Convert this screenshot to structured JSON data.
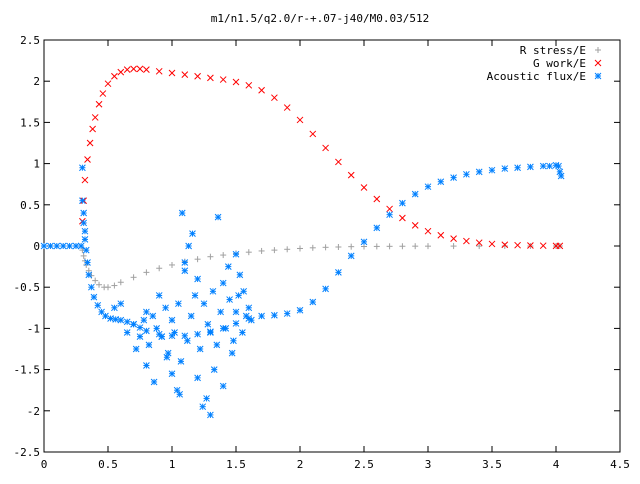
{
  "chart_data": {
    "type": "scatter",
    "title": "m1/n1.5/q2.0/r-+.07-j40/M0.03/512",
    "xlabel": "",
    "ylabel": "",
    "xlim": [
      0,
      4.5
    ],
    "ylim": [
      -2.5,
      2.5
    ],
    "x_ticks": [
      0,
      0.5,
      1,
      1.5,
      2,
      2.5,
      3,
      3.5,
      4,
      4.5
    ],
    "x_tick_labels": [
      "0",
      "0.5",
      "1",
      "1.5",
      "2",
      "2.5",
      "3",
      "3.5",
      "4",
      "4.5"
    ],
    "y_ticks": [
      -2.5,
      -2,
      -1.5,
      -1,
      -0.5,
      0,
      0.5,
      1,
      1.5,
      2,
      2.5
    ],
    "y_tick_labels": [
      "-2.5",
      "-2",
      "-1.5",
      "-1",
      "-0.5",
      "0",
      "0.5",
      "1",
      "1.5",
      "2",
      "2.5"
    ],
    "grid": false,
    "legend_position": "top-right",
    "series": [
      {
        "name": "R stress/E",
        "marker": "plus",
        "color": "#a0a0a0",
        "x": [
          0.3,
          0.31,
          0.32,
          0.33,
          0.35,
          0.37,
          0.4,
          0.43,
          0.47,
          0.5,
          0.55,
          0.6,
          0.7,
          0.8,
          0.9,
          1.0,
          1.1,
          1.2,
          1.3,
          1.4,
          1.5,
          1.6,
          1.7,
          1.8,
          1.9,
          2.0,
          2.1,
          2.2,
          2.3,
          2.4,
          2.5,
          2.6,
          2.7,
          2.8,
          2.9,
          3.0,
          3.2,
          3.4,
          3.6,
          3.8,
          4.0,
          4.03
        ],
        "y": [
          -0.05,
          -0.12,
          -0.18,
          -0.23,
          -0.3,
          -0.36,
          -0.42,
          -0.47,
          -0.5,
          -0.5,
          -0.48,
          -0.44,
          -0.38,
          -0.32,
          -0.27,
          -0.23,
          -0.19,
          -0.16,
          -0.13,
          -0.11,
          -0.09,
          -0.075,
          -0.06,
          -0.05,
          -0.04,
          -0.03,
          -0.022,
          -0.016,
          -0.012,
          -0.008,
          -0.006,
          -0.005,
          -0.004,
          -0.003,
          -0.002,
          -0.002,
          -0.001,
          -0.001,
          0,
          0,
          0,
          0
        ]
      },
      {
        "name": "G work/E",
        "marker": "cross",
        "color": "#ff0000",
        "x": [
          0.3,
          0.31,
          0.32,
          0.34,
          0.36,
          0.38,
          0.4,
          0.43,
          0.46,
          0.5,
          0.55,
          0.6,
          0.65,
          0.7,
          0.75,
          0.8,
          0.9,
          1.0,
          1.1,
          1.2,
          1.3,
          1.4,
          1.5,
          1.6,
          1.7,
          1.8,
          1.9,
          2.0,
          2.1,
          2.2,
          2.3,
          2.4,
          2.5,
          2.6,
          2.7,
          2.8,
          2.9,
          3.0,
          3.1,
          3.2,
          3.3,
          3.4,
          3.5,
          3.6,
          3.7,
          3.8,
          3.9,
          4.0,
          4.03
        ],
        "y": [
          0.3,
          0.55,
          0.8,
          1.05,
          1.25,
          1.42,
          1.56,
          1.72,
          1.85,
          1.97,
          2.06,
          2.11,
          2.14,
          2.15,
          2.15,
          2.14,
          2.12,
          2.1,
          2.08,
          2.06,
          2.04,
          2.02,
          1.99,
          1.95,
          1.89,
          1.8,
          1.68,
          1.53,
          1.36,
          1.19,
          1.02,
          0.86,
          0.71,
          0.57,
          0.45,
          0.34,
          0.25,
          0.18,
          0.13,
          0.09,
          0.06,
          0.04,
          0.025,
          0.015,
          0.01,
          0.006,
          0.004,
          0.002,
          0.002
        ]
      },
      {
        "name": "Acoustic flux/E",
        "marker": "star",
        "color": "#0080ff",
        "x": [
          0.0,
          0.05,
          0.1,
          0.15,
          0.2,
          0.25,
          0.29,
          0.3,
          0.3,
          0.31,
          0.31,
          0.32,
          0.32,
          0.33,
          0.34,
          0.35,
          0.37,
          0.39,
          0.42,
          0.45,
          0.48,
          0.52,
          0.56,
          0.6,
          0.65,
          0.7,
          0.75,
          0.8,
          0.9,
          1.0,
          1.1,
          1.2,
          1.3,
          1.4,
          1.5,
          1.6,
          1.7,
          1.8,
          1.9,
          2.0,
          2.1,
          2.2,
          2.3,
          2.4,
          2.5,
          2.6,
          2.7,
          2.8,
          2.9,
          3.0,
          3.1,
          3.2,
          3.3,
          3.4,
          3.5,
          3.6,
          3.7,
          3.8,
          3.9,
          3.95,
          4.0,
          4.02,
          4.03,
          4.04,
          0.55,
          0.6,
          0.65,
          0.7,
          0.75,
          0.78,
          0.8,
          0.82,
          0.85,
          0.88,
          0.9,
          0.92,
          0.95,
          0.97,
          1.0,
          1.02,
          1.05,
          1.07,
          1.08,
          1.1,
          1.12,
          1.15,
          1.18,
          1.2,
          1.22,
          1.25,
          1.28,
          1.3,
          1.32,
          1.35,
          1.38,
          1.4,
          1.42,
          1.45,
          1.48,
          1.5,
          1.52,
          1.55,
          1.58,
          1.6,
          1.62,
          0.72,
          0.8,
          0.86,
          0.92,
          0.96,
          1.0,
          1.04,
          1.06,
          1.1,
          1.13,
          1.16,
          1.2,
          1.24,
          1.27,
          1.3,
          1.33,
          1.36,
          1.4,
          1.44,
          1.47,
          1.5,
          1.53,
          1.56
        ],
        "y": [
          0,
          0,
          0,
          0,
          0,
          0,
          0,
          0.95,
          0.55,
          0.4,
          0.28,
          0.18,
          0.08,
          -0.05,
          -0.2,
          -0.35,
          -0.5,
          -0.62,
          -0.72,
          -0.8,
          -0.85,
          -0.88,
          -0.89,
          -0.9,
          -0.92,
          -0.95,
          -0.99,
          -1.03,
          -1.07,
          -1.09,
          -1.09,
          -1.07,
          -1.04,
          -1.0,
          -0.94,
          -0.88,
          -0.85,
          -0.84,
          -0.82,
          -0.78,
          -0.68,
          -0.52,
          -0.32,
          -0.12,
          0.05,
          0.22,
          0.38,
          0.52,
          0.63,
          0.72,
          0.78,
          0.83,
          0.87,
          0.9,
          0.92,
          0.94,
          0.95,
          0.96,
          0.97,
          0.97,
          0.98,
          0.97,
          0.9,
          0.85,
          -0.75,
          -0.7,
          -1.05,
          -0.95,
          -1.1,
          -0.9,
          -0.8,
          -1.2,
          -0.85,
          -1.0,
          -0.6,
          -1.1,
          -0.75,
          -1.3,
          -0.9,
          -1.05,
          -0.7,
          -1.4,
          0.4,
          -0.3,
          -1.15,
          -0.85,
          -0.6,
          -0.4,
          -1.25,
          -0.7,
          -0.95,
          -1.05,
          -0.55,
          -1.2,
          -0.8,
          -0.45,
          -1.0,
          -0.65,
          -1.15,
          -0.8,
          -0.6,
          -1.05,
          -0.85,
          -0.75,
          -0.9,
          -1.25,
          -1.45,
          -1.65,
          -1.1,
          -1.35,
          -1.55,
          -1.75,
          -1.8,
          -0.2,
          0.0,
          0.15,
          -1.6,
          -1.95,
          -1.85,
          -2.05,
          -1.5,
          0.35,
          -1.7,
          -0.25,
          -1.3,
          -0.1,
          -0.35,
          -0.55
        ]
      }
    ]
  }
}
